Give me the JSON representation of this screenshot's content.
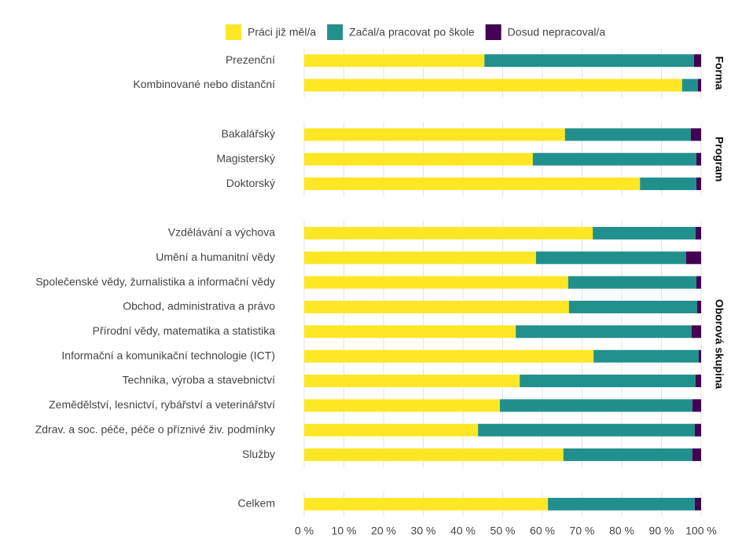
{
  "chart_data": {
    "type": "bar",
    "orientation": "horizontal",
    "stacked": true,
    "grid": true,
    "xlim": [
      0,
      100
    ],
    "xticks": [
      {
        "value": 0,
        "label": "0 %"
      },
      {
        "value": 10,
        "label": "10 %"
      },
      {
        "value": 20,
        "label": "20 %"
      },
      {
        "value": 30,
        "label": "30 %"
      },
      {
        "value": 40,
        "label": "40 %"
      },
      {
        "value": 50,
        "label": "50 %"
      },
      {
        "value": 60,
        "label": "60 %"
      },
      {
        "value": 70,
        "label": "70 %"
      },
      {
        "value": 80,
        "label": "80 %"
      },
      {
        "value": 90,
        "label": "90 %"
      },
      {
        "value": 100,
        "label": "100 %"
      }
    ],
    "series": [
      {
        "name": "Práci již měl/a",
        "color": "#fde725"
      },
      {
        "name": "Začal/a pracovat po škole",
        "color": "#21908c"
      },
      {
        "name": "Dosud nepracoval/a",
        "color": "#440154"
      }
    ],
    "panels": [
      {
        "label": "Forma",
        "categories": [
          "Prezenční",
          "Kombinované nebo distanční"
        ],
        "series": [
          {
            "values": [
              45.4,
              95.2
            ]
          },
          {
            "values": [
              52.8,
              4.0
            ]
          },
          {
            "values": [
              1.8,
              0.8
            ]
          }
        ]
      },
      {
        "label": "Program",
        "categories": [
          "Bakalářský",
          "Magisterský",
          "Doktorský"
        ],
        "series": [
          {
            "values": [
              65.7,
              57.6,
              84.6
            ]
          },
          {
            "values": [
              31.7,
              41.2,
              14.2
            ]
          },
          {
            "values": [
              2.6,
              1.2,
              1.2
            ]
          }
        ]
      },
      {
        "label": "Oborová skupina",
        "categories": [
          "Vzdělávání a výchova",
          "Umění a humanitní vědy",
          "Společenské vědy, žurnalistika a informační vědy",
          "Obchod, administrativa a právo",
          "Přírodní vědy, matematika a statistika",
          "Informační a komunikační technologie (ICT)",
          "Technika, výroba a stavebnictví",
          "Zemědělství, lesnictví, rybářství a veterinářství",
          "Zdrav. a soc. péče, péče o příznivé živ. podmínky",
          "Služby"
        ],
        "series": [
          {
            "values": [
              72.7,
              58.4,
              66.5,
              66.7,
              53.3,
              72.9,
              54.3,
              49.3,
              43.8,
              65.3
            ]
          },
          {
            "values": [
              25.9,
              37.8,
              32.3,
              32.3,
              44.3,
              26.5,
              44.3,
              48.5,
              54.6,
              32.5
            ]
          },
          {
            "values": [
              1.4,
              3.8,
              1.2,
              1.0,
              2.4,
              0.6,
              1.4,
              2.2,
              1.6,
              2.2
            ]
          }
        ]
      },
      {
        "categories": [
          "Celkem"
        ],
        "series": [
          {
            "values": [
              61.4
            ]
          },
          {
            "values": [
              37.0
            ]
          },
          {
            "values": [
              1.6
            ]
          }
        ]
      }
    ]
  }
}
